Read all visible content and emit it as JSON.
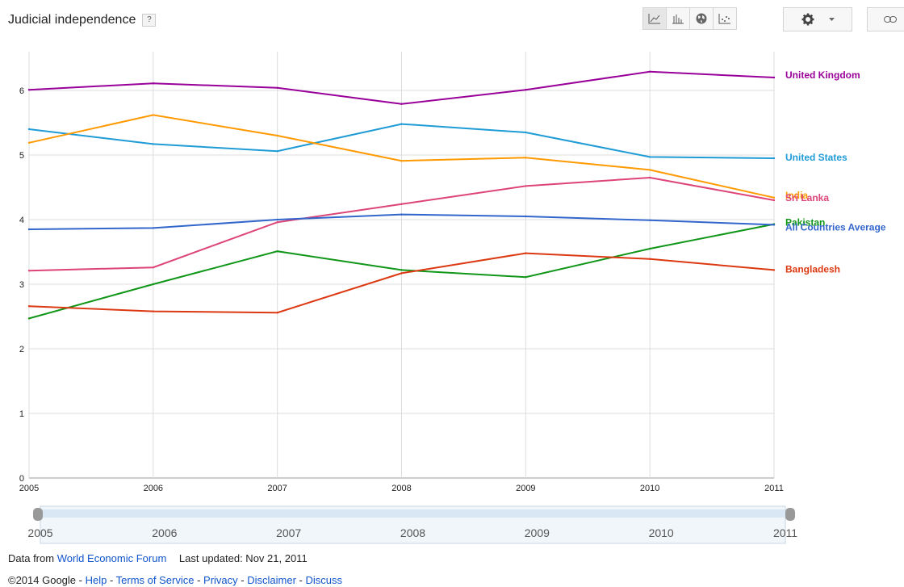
{
  "header": {
    "title": "Judicial independence",
    "help_label": "?"
  },
  "toolbar": {
    "views": [
      {
        "icon": "line-chart-icon",
        "active": true
      },
      {
        "icon": "bar-chart-icon",
        "active": false
      },
      {
        "icon": "globe-map-icon",
        "active": false
      },
      {
        "icon": "scatter-chart-icon",
        "active": false
      }
    ],
    "settings_icon": "gear-icon",
    "dropdown_icon": "caret-down-icon",
    "link_icon": "link-icon"
  },
  "chart_data": {
    "type": "line",
    "title": "Judicial independence",
    "x": [
      "2005",
      "2006",
      "2007",
      "2008",
      "2009",
      "2010",
      "2011"
    ],
    "ylim": [
      0,
      6.6
    ],
    "yticks": [
      0,
      1,
      2,
      3,
      4,
      5,
      6
    ],
    "grid": true,
    "legend_placement": "right",
    "series": [
      {
        "name": "United Kingdom",
        "color": "#990099",
        "values": [
          6.01,
          6.11,
          6.04,
          5.79,
          6.01,
          6.29,
          6.2
        ]
      },
      {
        "name": "United States",
        "color": "#1f9bd6",
        "values": [
          5.4,
          5.17,
          5.06,
          5.48,
          5.35,
          4.97,
          4.95
        ]
      },
      {
        "name": "India",
        "color": "#ff9900",
        "values": [
          5.19,
          5.62,
          5.3,
          4.91,
          4.96,
          4.77,
          4.34
        ]
      },
      {
        "name": "Sri Lanka",
        "color": "#dd4477",
        "values": [
          3.21,
          3.26,
          3.96,
          4.24,
          4.52,
          4.65,
          4.3
        ]
      },
      {
        "name": "Pakistan",
        "color": "#109618",
        "values": [
          2.47,
          3.0,
          3.51,
          3.22,
          3.11,
          3.55,
          3.93
        ]
      },
      {
        "name": "All Countries Average",
        "color": "#3366cc",
        "values": [
          3.85,
          3.87,
          4.0,
          4.08,
          4.05,
          3.99,
          3.92
        ]
      },
      {
        "name": "Bangladesh",
        "color": "#dc3912",
        "values": [
          2.66,
          2.58,
          2.56,
          3.17,
          3.48,
          3.39,
          3.22
        ]
      }
    ],
    "label_offsets": {
      "United Kingdom": -3,
      "United States": -1,
      "India": -3,
      "Sri Lanka": -3,
      "Pakistan": -2,
      "All Countries Average": 3,
      "Bangladesh": -1
    }
  },
  "timeline": {
    "labels": [
      "2005",
      "2006",
      "2007",
      "2008",
      "2009",
      "2010",
      "2011"
    ]
  },
  "footer": {
    "data_from": "Data from",
    "source_link": "World Economic Forum",
    "last_updated": "Last updated: Nov 21, 2011",
    "copyright": "©2014 Google",
    "links": [
      "Help",
      "Terms of Service",
      "Privacy",
      "Disclaimer",
      "Discuss"
    ],
    "separator": " - "
  }
}
